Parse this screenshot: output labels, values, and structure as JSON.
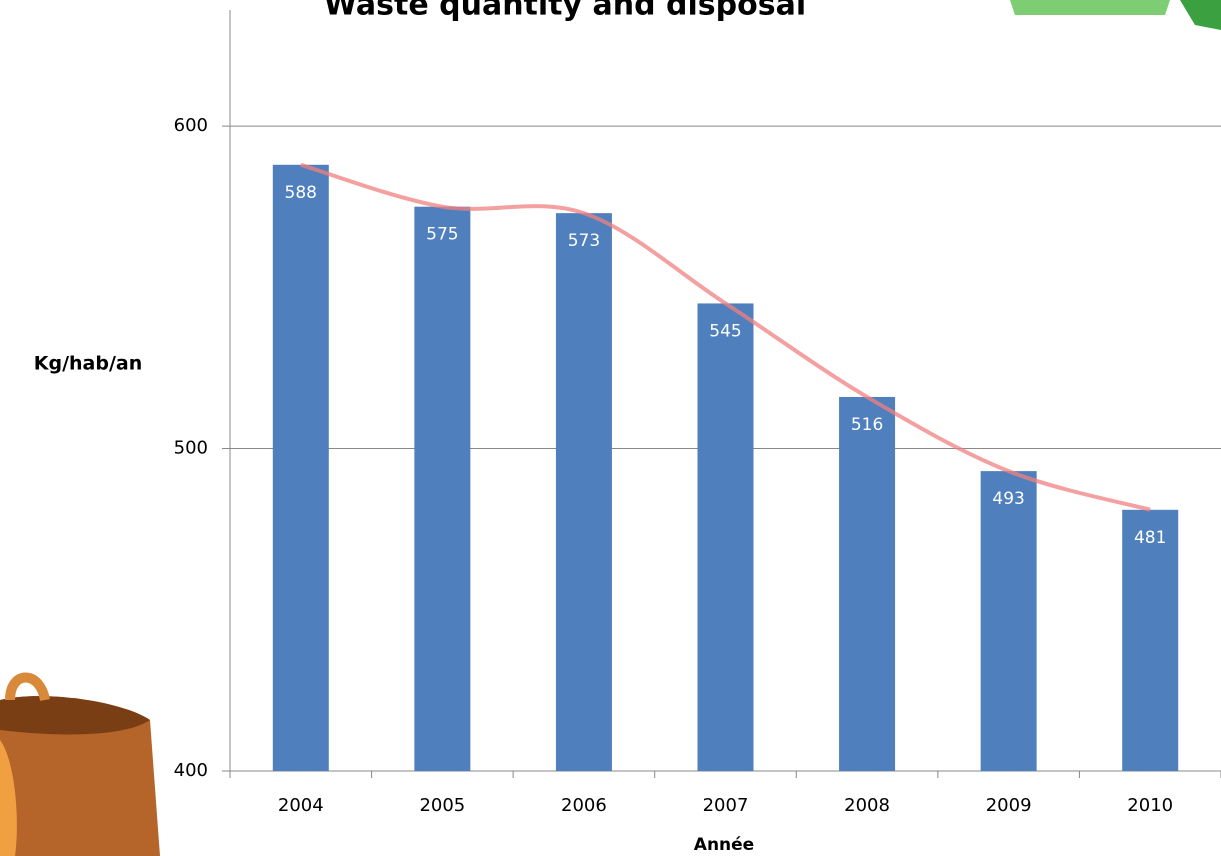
{
  "chart_data": {
    "type": "bar",
    "title": "Waste quantity and disposal",
    "y_label": "Kg/hab/an",
    "x_label": "Année",
    "categories": [
      "2004",
      "2005",
      "2006",
      "2007",
      "2008",
      "2009",
      "2010"
    ],
    "values": [
      588,
      575,
      573,
      545,
      516,
      493,
      481
    ],
    "color": "#4f7fbc",
    "trend_color": "#f08080",
    "ylim": [
      400,
      636
    ],
    "yticks": [
      400,
      500,
      600
    ],
    "grid": true
  }
}
